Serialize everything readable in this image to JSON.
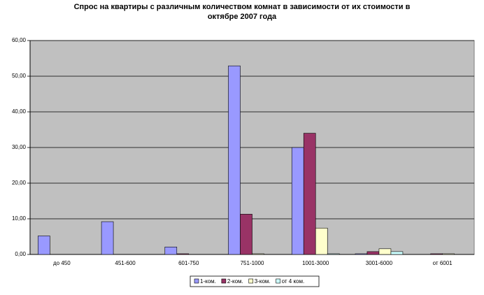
{
  "chart_data": {
    "type": "bar",
    "title": "Спрос на квартиры с различным количеством комнат в зависимости от их стоимости в октябре 2007 года",
    "categories": [
      "до 450",
      "451-600",
      "601-750",
      "751-1000",
      "1001-3000",
      "3001-6000",
      "от 6001"
    ],
    "series": [
      {
        "name": "1-ком.",
        "color": "#9999ff",
        "values": [
          5.2,
          9.2,
          2.1,
          52.9,
          30.0,
          0.2,
          0
        ]
      },
      {
        "name": "2-ком.",
        "color": "#993366",
        "values": [
          0,
          0,
          0.2,
          11.3,
          34.0,
          0.8,
          0.2
        ]
      },
      {
        "name": "3-ком.",
        "color": "#ffffcc",
        "values": [
          0,
          0,
          0,
          0.2,
          7.4,
          1.6,
          0.2
        ]
      },
      {
        "name": "от 4 ком.",
        "color": "#ccffff",
        "values": [
          0,
          0,
          0,
          0,
          0.2,
          0.8,
          0
        ]
      }
    ],
    "ylim": [
      0,
      60
    ],
    "yticks": [
      {
        "value": 0,
        "label": "0,00"
      },
      {
        "value": 10,
        "label": "10,00"
      },
      {
        "value": 20,
        "label": "20,00"
      },
      {
        "value": 30,
        "label": "30,00"
      },
      {
        "value": 40,
        "label": "40,00"
      },
      {
        "value": 50,
        "label": "50,00"
      },
      {
        "value": 60,
        "label": "60,00"
      }
    ],
    "grid": true,
    "legend": "bottom"
  }
}
